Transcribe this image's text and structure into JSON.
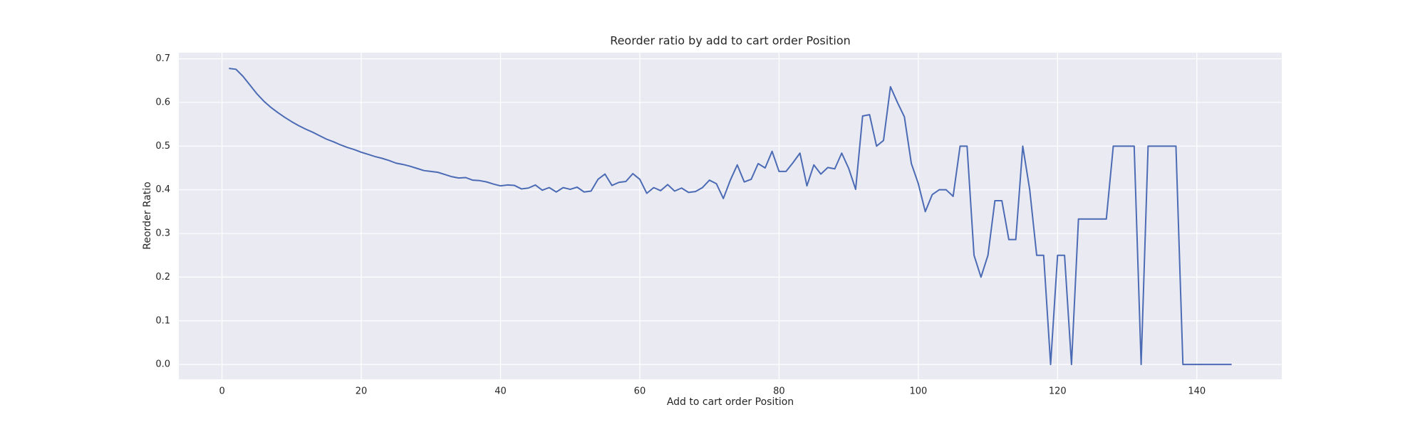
{
  "chart_data": {
    "type": "line",
    "title": "Reorder ratio by add to cart order Position",
    "x_label": "Add to cart order Position",
    "y_label": "Reorder Ratio",
    "color": "#4c6bb5",
    "background": "#eaeaf2",
    "grid": true,
    "xlim": [
      -6.2,
      152.2
    ],
    "ylim": [
      -0.034,
      0.714
    ],
    "xticks": [
      0,
      20,
      40,
      60,
      80,
      100,
      120,
      140
    ],
    "yticks": [
      {
        "value": 0,
        "label": "0.0"
      },
      0.1,
      0.2,
      0.3,
      0.4,
      0.5,
      0.6,
      0.7
    ],
    "x": [
      1,
      2,
      3,
      4,
      5,
      6,
      7,
      8,
      9,
      10,
      11,
      12,
      13,
      14,
      15,
      16,
      17,
      18,
      19,
      20,
      21,
      22,
      23,
      24,
      25,
      26,
      27,
      28,
      29,
      30,
      31,
      32,
      33,
      34,
      35,
      36,
      37,
      38,
      39,
      40,
      41,
      42,
      43,
      44,
      45,
      46,
      47,
      48,
      49,
      50,
      51,
      52,
      53,
      54,
      55,
      56,
      57,
      58,
      59,
      60,
      61,
      62,
      63,
      64,
      65,
      66,
      67,
      68,
      69,
      70,
      71,
      72,
      73,
      74,
      75,
      76,
      77,
      78,
      79,
      80,
      81,
      82,
      83,
      84,
      85,
      86,
      87,
      88,
      89,
      90,
      91,
      92,
      93,
      94,
      95,
      96,
      97,
      98,
      99,
      100,
      101,
      102,
      103,
      104,
      105,
      106,
      107,
      108,
      109,
      110,
      111,
      112,
      113,
      114,
      115,
      116,
      117,
      118,
      119,
      120,
      121,
      122,
      123,
      124,
      125,
      126,
      127,
      128,
      129,
      130,
      131,
      132,
      133,
      134,
      135,
      136,
      137,
      138,
      139,
      140,
      141,
      142,
      143,
      144,
      145
    ],
    "values": [
      0.678,
      0.676,
      0.66,
      0.64,
      0.62,
      0.603,
      0.589,
      0.577,
      0.566,
      0.556,
      0.547,
      0.539,
      0.532,
      0.524,
      0.516,
      0.51,
      0.503,
      0.497,
      0.492,
      0.486,
      0.481,
      0.476,
      0.472,
      0.467,
      0.461,
      0.458,
      0.454,
      0.449,
      0.444,
      0.442,
      0.44,
      0.435,
      0.43,
      0.427,
      0.428,
      0.422,
      0.421,
      0.418,
      0.413,
      0.409,
      0.411,
      0.41,
      0.402,
      0.404,
      0.411,
      0.399,
      0.405,
      0.395,
      0.405,
      0.401,
      0.406,
      0.395,
      0.397,
      0.424,
      0.436,
      0.41,
      0.417,
      0.419,
      0.437,
      0.424,
      0.392,
      0.405,
      0.398,
      0.412,
      0.397,
      0.404,
      0.394,
      0.396,
      0.405,
      0.422,
      0.414,
      0.38,
      0.422,
      0.457,
      0.418,
      0.424,
      0.46,
      0.45,
      0.488,
      0.442,
      0.442,
      0.462,
      0.484,
      0.409,
      0.457,
      0.436,
      0.451,
      0.448,
      0.484,
      0.449,
      0.401,
      0.569,
      0.572,
      0.5,
      0.513,
      0.636,
      0.6,
      0.567,
      0.46,
      0.414,
      0.35,
      0.389,
      0.4,
      0.4,
      0.385,
      0.5,
      0.5,
      0.25,
      0.2,
      0.25,
      0.375,
      0.375,
      0.286,
      0.286,
      0.5,
      0.4,
      0.25,
      0.25,
      0,
      0.25,
      0.25,
      0,
      0.333,
      0.333,
      0.333,
      0.333,
      0.333,
      0.5,
      0.5,
      0.5,
      0.5,
      0,
      0.5,
      0.5,
      0.5,
      0.5,
      0.5,
      0,
      0,
      0,
      0,
      0,
      0,
      0,
      0
    ]
  }
}
